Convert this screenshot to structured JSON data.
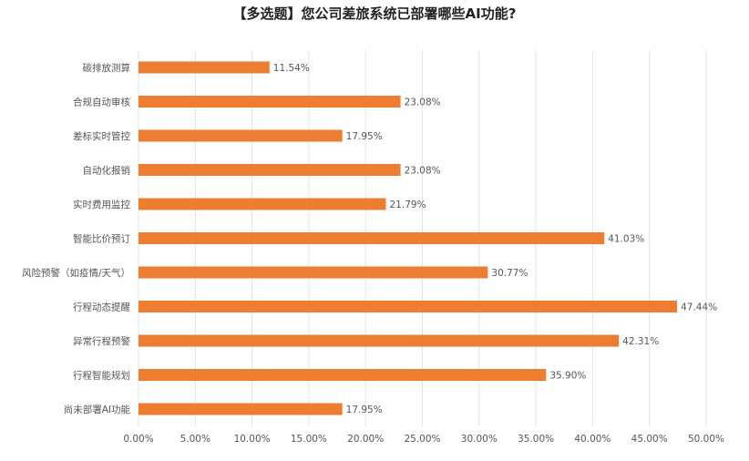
{
  "chart_data": {
    "type": "bar",
    "orientation": "horizontal",
    "title": "【多选题】您公司差旅系统已部署哪些AI功能?",
    "categories": [
      "碳排放测算",
      "合规自动审核",
      "差标实时管控",
      "自动化报销",
      "实时费用监控",
      "智能比价预订",
      "风险预警（如疫情/天气）",
      "行程动态提醒",
      "异常行程预警",
      "行程智能规划",
      "尚未部署AI功能"
    ],
    "values": [
      11.54,
      23.08,
      17.95,
      23.08,
      21.79,
      41.03,
      30.77,
      47.44,
      42.31,
      35.9,
      17.95
    ],
    "value_labels": [
      "11.54%",
      "23.08%",
      "17.95%",
      "23.08%",
      "21.79%",
      "41.03%",
      "30.77%",
      "47.44%",
      "42.31%",
      "35.90%",
      "17.95%"
    ],
    "xlim": [
      0,
      50
    ],
    "x_ticks": [
      "0.00%",
      "5.00%",
      "10.00%",
      "15.00%",
      "20.00%",
      "25.00%",
      "30.00%",
      "35.00%",
      "40.00%",
      "45.00%",
      "50.00%"
    ],
    "grid": true,
    "bar_color": "#ED7D31",
    "xlabel": "",
    "ylabel": ""
  }
}
